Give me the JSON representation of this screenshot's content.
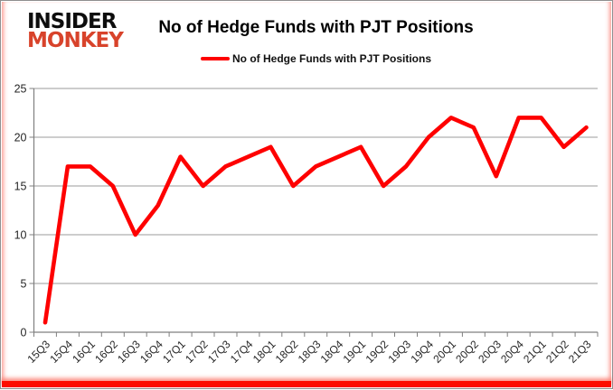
{
  "logo": {
    "line1": "INSIDER",
    "line2": "MONKEY"
  },
  "title": "No of Hedge Funds with PJT Positions",
  "legend": {
    "label": "No of Hedge Funds with PJT Positions"
  },
  "colors": {
    "line": "#fe0000",
    "logo_accent": "#d8432b",
    "grid": "#9b9b9b",
    "axis": "#7f7f7f",
    "axis_label": "#262626",
    "frame_accent": "#fd0d00"
  },
  "chart_data": {
    "type": "line",
    "title": "No of Hedge Funds with PJT Positions",
    "categories": [
      "15Q3",
      "15Q4",
      "16Q1",
      "16Q2",
      "16Q3",
      "16Q4",
      "17Q1",
      "17Q2",
      "17Q3",
      "17Q4",
      "18Q1",
      "18Q2",
      "18Q3",
      "18Q4",
      "19Q1",
      "19Q2",
      "19Q3",
      "19Q4",
      "20Q1",
      "20Q2",
      "20Q3",
      "20Q4",
      "21Q1",
      "21Q2",
      "21Q3"
    ],
    "series": [
      {
        "name": "No of Hedge Funds with PJT Positions",
        "values": [
          1,
          17,
          17,
          15,
          10,
          13,
          18,
          15,
          17,
          18,
          19,
          15,
          17,
          18,
          19,
          15,
          17,
          20,
          22,
          21,
          16,
          22,
          22,
          19,
          21
        ]
      }
    ],
    "xlabel": "",
    "ylabel": "",
    "ylim": [
      0,
      25
    ],
    "yticks": [
      0,
      5,
      10,
      15,
      20,
      25
    ],
    "grid": true,
    "legend_position": "top"
  }
}
